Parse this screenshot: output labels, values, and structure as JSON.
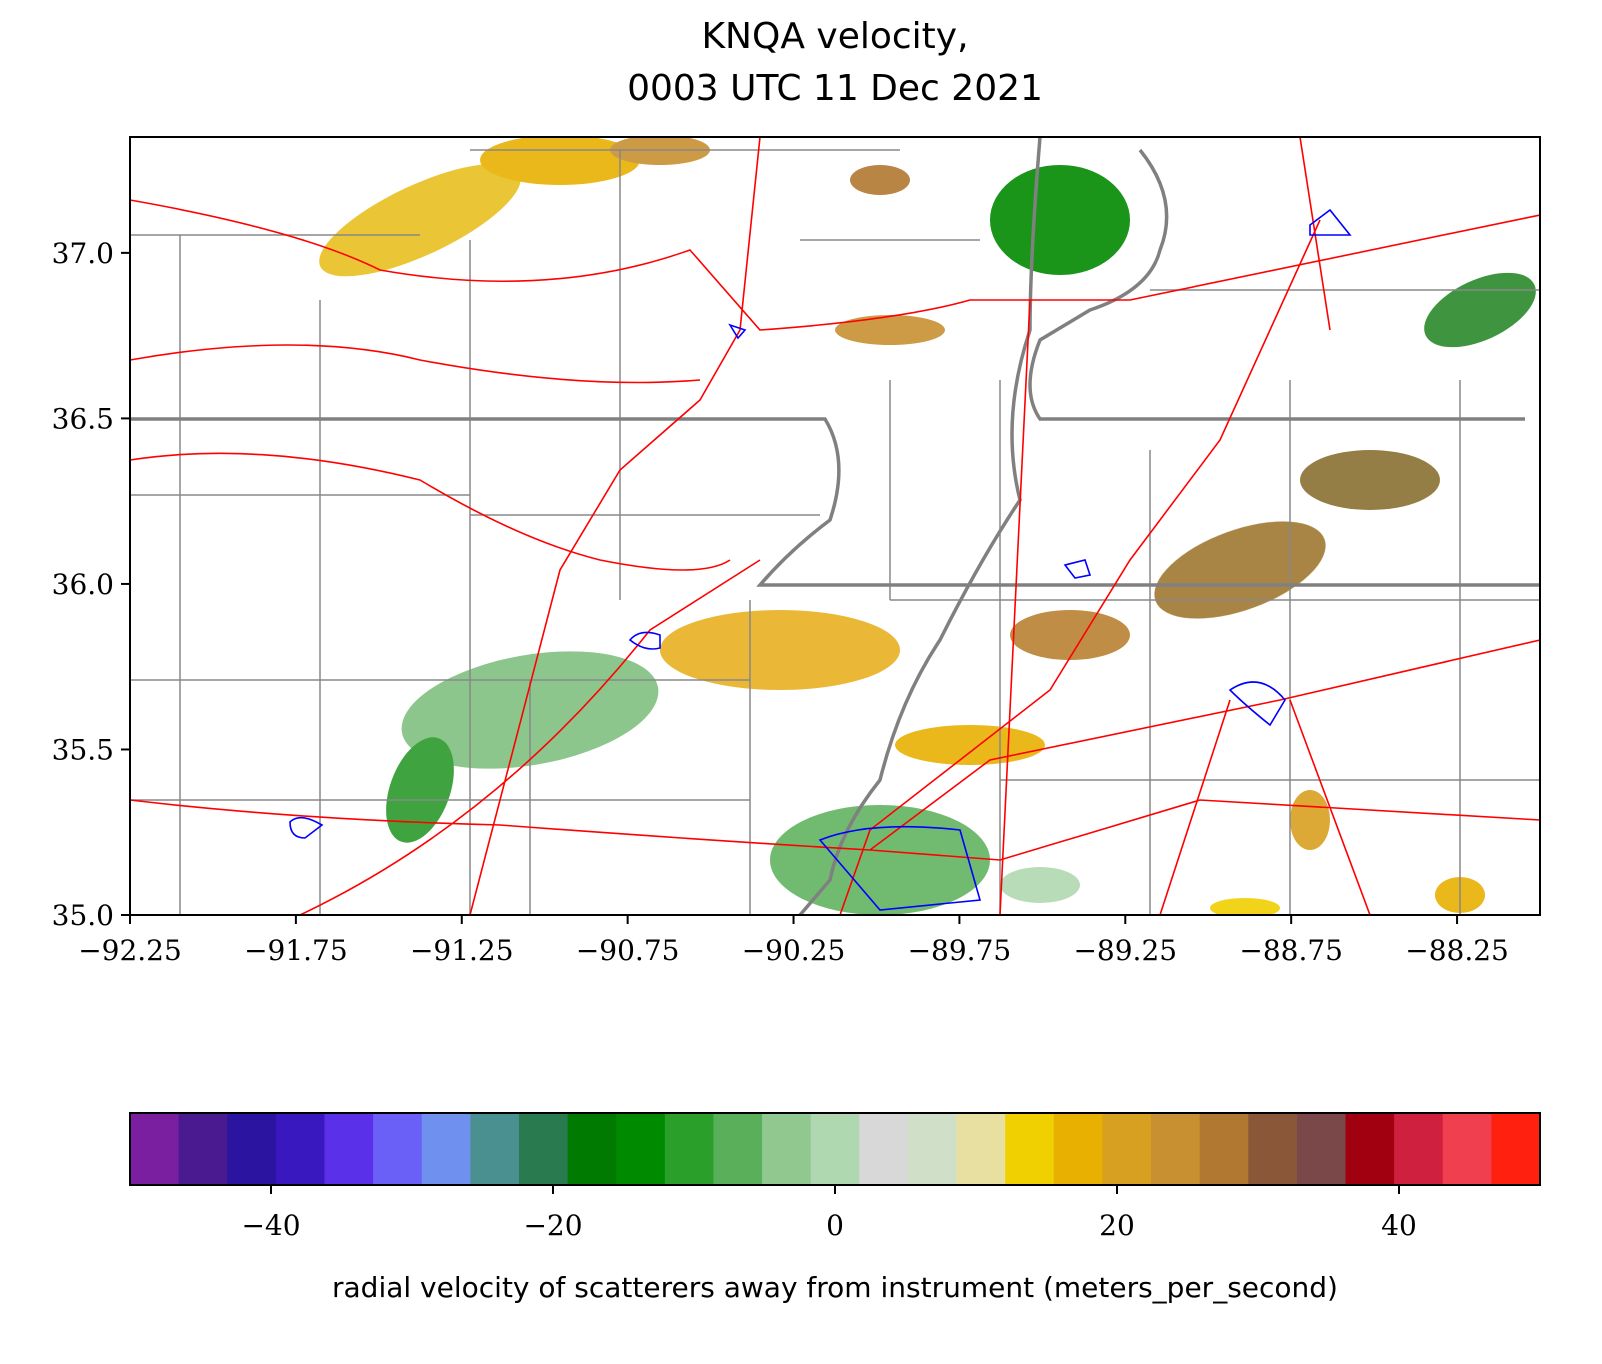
{
  "title": [
    "KNQA velocity,",
    "0003 UTC 11 Dec 2021"
  ],
  "map": {
    "xlim": [
      -92.25,
      -88.0
    ],
    "ylim": [
      35.0,
      37.35
    ],
    "xticks": [
      {
        "value": -92.25,
        "label": "−92.25"
      },
      {
        "value": -91.75,
        "label": "−91.75"
      },
      {
        "value": -91.25,
        "label": "−91.25"
      },
      {
        "value": -90.75,
        "label": "−90.75"
      },
      {
        "value": -90.25,
        "label": "−90.25"
      },
      {
        "value": -89.75,
        "label": "−89.75"
      },
      {
        "value": -89.25,
        "label": "−89.25"
      },
      {
        "value": -88.75,
        "label": "−88.75"
      },
      {
        "value": -88.25,
        "label": "−88.25"
      }
    ],
    "yticks": [
      {
        "value": 35.0,
        "label": "35.0"
      },
      {
        "value": 35.5,
        "label": "35.5"
      },
      {
        "value": 36.0,
        "label": "36.0"
      },
      {
        "value": 36.5,
        "label": "36.5"
      },
      {
        "value": 37.0,
        "label": "37.0"
      }
    ]
  },
  "colorbar": {
    "lim": [
      -50,
      50
    ],
    "ticks": [
      {
        "value": -40,
        "label": "−40"
      },
      {
        "value": -20,
        "label": "−20"
      },
      0,
      20,
      40
    ],
    "colors": [
      "#7a1fa0",
      "#4a1a90",
      "#2a14a0",
      "#3a18c0",
      "#5a30e8",
      "#6a60f8",
      "#7090f0",
      "#4a9090",
      "#2a7a50",
      "#007a00",
      "#008a00",
      "#2aa02a",
      "#5ab05a",
      "#90c890",
      "#b0d8b0",
      "#d8d8d8",
      "#d0e0c8",
      "#e8e0a0",
      "#f0d000",
      "#e8b000",
      "#d8a020",
      "#c89030",
      "#b07830",
      "#8a5838",
      "#7a4848",
      "#a00010",
      "#d02040",
      "#f04050",
      "#ff2010"
    ],
    "label": "radial velocity of scatterers away from instrument (meters_per_second)"
  }
}
